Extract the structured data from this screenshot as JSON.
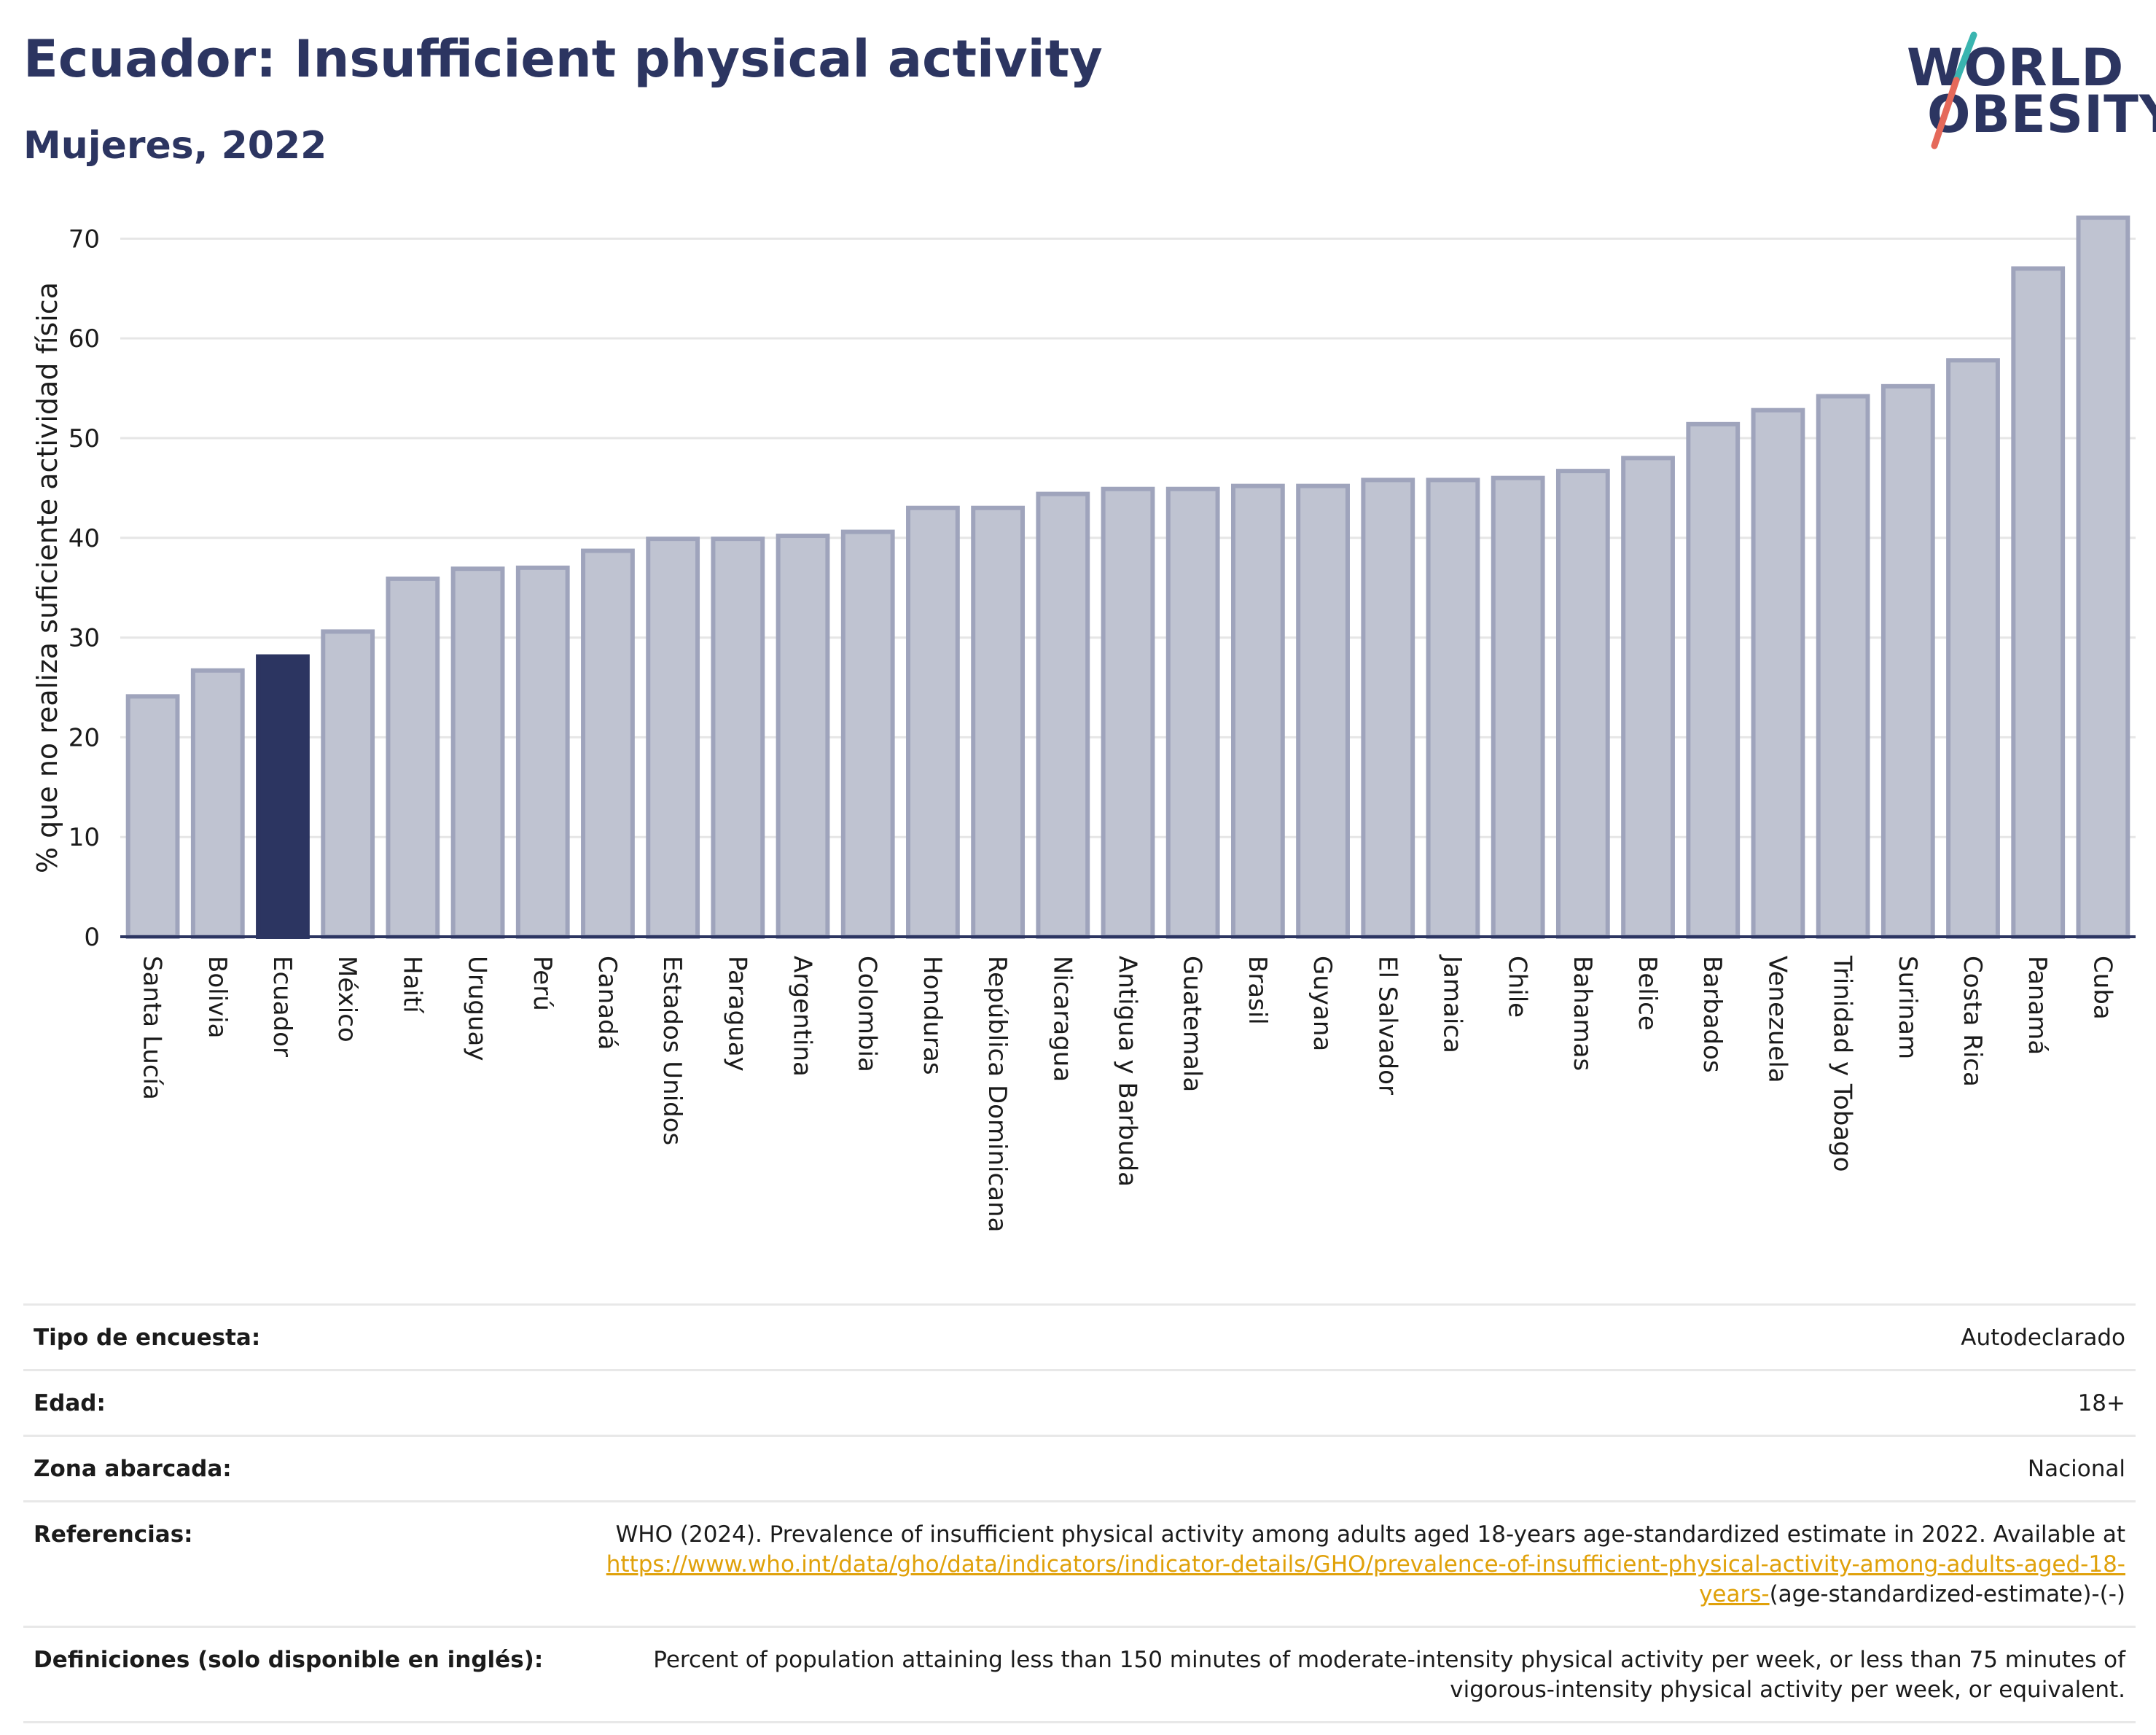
{
  "header": {
    "title": "Ecuador: Insufficient physical activity",
    "subtitle": "Mujeres, 2022"
  },
  "logo": {
    "line1": "WORLD",
    "line2": "OBESITY",
    "colors": {
      "text": "#2c3561",
      "slash_top": "#3ab5b0",
      "slash_bottom": "#e5695a"
    }
  },
  "colors": {
    "bar_fill": "#bfc3d1",
    "bar_stroke": "#9fa4bc",
    "highlight_fill": "#2c3561",
    "highlight_stroke": "#2c3561",
    "gridline": "#e6e6e6",
    "axis": "#2c3561"
  },
  "chart_data": {
    "type": "bar",
    "title": "Ecuador: Insufficient physical activity",
    "subtitle": "Mujeres, 2022",
    "xlabel": "",
    "ylabel": "% que no realiza suficiente actividad física",
    "ylim": [
      0,
      72
    ],
    "yticks": [
      0,
      10,
      20,
      30,
      40,
      50,
      60,
      70
    ],
    "grid": true,
    "highlight": "Ecuador",
    "categories": [
      "Santa Lucía",
      "Bolivia",
      "Ecuador",
      "México",
      "Haití",
      "Uruguay",
      "Perú",
      "Canadá",
      "Estados Unidos",
      "Paraguay",
      "Argentina",
      "Colombia",
      "Honduras",
      "República Dominicana",
      "Nicaragua",
      "Antigua y Barbuda",
      "Guatemala",
      "Brasil",
      "Guyana",
      "El Salvador",
      "Jamaica",
      "Chile",
      "Bahamas",
      "Belice",
      "Barbados",
      "Venezuela",
      "Trinidad y Tobago",
      "Surinam",
      "Costa Rica",
      "Panamá",
      "Cuba"
    ],
    "values": [
      24.1,
      26.7,
      28.1,
      30.6,
      35.9,
      36.9,
      37.0,
      38.7,
      39.9,
      39.9,
      40.2,
      40.6,
      43.0,
      43.0,
      44.4,
      44.9,
      44.9,
      45.2,
      45.2,
      45.8,
      45.8,
      46.0,
      46.7,
      48.0,
      51.4,
      52.8,
      54.2,
      55.2,
      57.8,
      67.0,
      72.1
    ]
  },
  "meta": [
    {
      "label": "Tipo de encuesta:",
      "value": "Autodeclarado"
    },
    {
      "label": "Edad:",
      "value": "18+"
    },
    {
      "label": "Zona abarcada:",
      "value": "Nacional"
    },
    {
      "label": "Referencias:",
      "value": "WHO (2024). Prevalence of insufficient physical activity among adults aged 18-years age-standardized estimate in 2022. Available at ",
      "link": "https://www.who.int/data/gho/data/indicators/indicator-details/GHO/prevalence-of-insufficient-physical-activity-among-adults-aged-18-years-",
      "suffix": "(age-standardized-estimate)-(-)"
    },
    {
      "label": "Definiciones (solo disponible en inglés):",
      "value": "Percent of population attaining less than 150 minutes of moderate-intensity physical activity per week, or less than 75 minutes of vigorous-intensity physical activity per week, or equivalent."
    }
  ]
}
